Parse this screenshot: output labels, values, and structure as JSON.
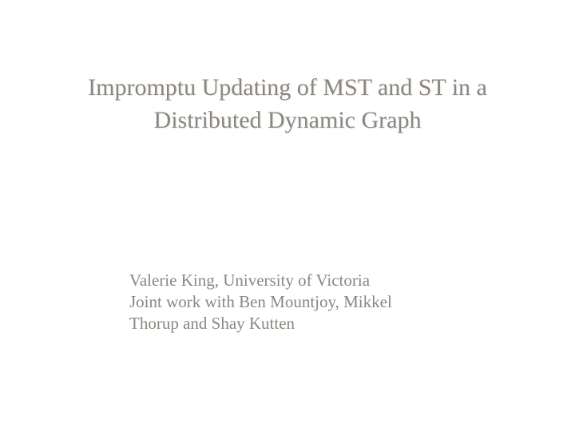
{
  "slide": {
    "title_line1": "Impromptu Updating of MST and ST in a",
    "title_line2": "Distributed Dynamic Graph",
    "author_line1": "Valerie King, University of Victoria",
    "author_line2": "Joint work with Ben Mountjoy, Mikkel",
    "author_line3": "Thorup and Shay Kutten",
    "background_color": "#ffffff",
    "title_color": "#8b8680",
    "author_color": "#8b8680",
    "title_fontsize": 30,
    "author_fontsize": 21,
    "font_family": "Comic Sans MS"
  }
}
